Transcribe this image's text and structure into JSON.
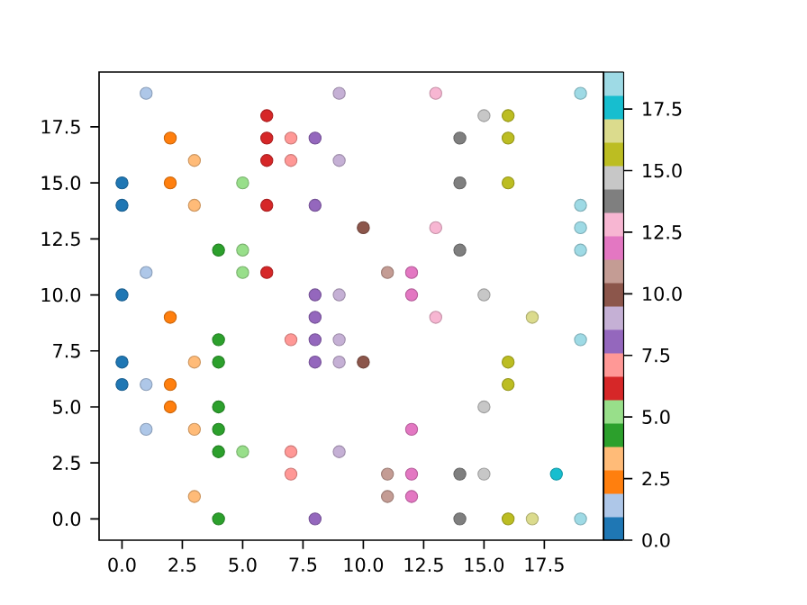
{
  "chart_data": {
    "type": "scatter",
    "x": [
      1,
      9,
      13,
      19,
      6,
      15,
      16,
      2,
      6,
      7,
      8,
      14,
      16,
      3,
      6,
      7,
      9,
      0,
      2,
      5,
      14,
      16,
      0,
      3,
      6,
      8,
      19,
      10,
      13,
      19,
      4,
      5,
      14,
      19,
      1,
      5,
      6,
      11,
      12,
      0,
      8,
      9,
      12,
      15,
      2,
      8,
      13,
      17,
      4,
      7,
      8,
      9,
      19,
      0,
      3,
      4,
      8,
      9,
      10,
      16,
      0,
      1,
      2,
      16,
      2,
      4,
      15,
      1,
      3,
      4,
      12,
      4,
      5,
      7,
      9,
      7,
      11,
      12,
      14,
      15,
      18,
      3,
      11,
      12,
      4,
      8,
      14,
      16,
      17,
      19
    ],
    "values": [
      19,
      19,
      19,
      19,
      18,
      18,
      18,
      17,
      17,
      17,
      17,
      17,
      17,
      16,
      16,
      16,
      16,
      15,
      15,
      15,
      15,
      15,
      14,
      14,
      14,
      14,
      14,
      13,
      13,
      13,
      12,
      12,
      12,
      12,
      11,
      11,
      11,
      11,
      11,
      10,
      10,
      10,
      10,
      10,
      9,
      9,
      9,
      9,
      8,
      8,
      8,
      8,
      8,
      7,
      7,
      7,
      7,
      7,
      7,
      7,
      6,
      6,
      6,
      6,
      5,
      5,
      5,
      4,
      4,
      4,
      4,
      3,
      3,
      3,
      3,
      2,
      2,
      2,
      2,
      2,
      2,
      1,
      1,
      1,
      0,
      0,
      0,
      0,
      0,
      0
    ],
    "cvalues": [
      1,
      9,
      13,
      19,
      6,
      15,
      16,
      2,
      6,
      7,
      8,
      14,
      16,
      3,
      6,
      7,
      9,
      0,
      2,
      5,
      14,
      16,
      0,
      3,
      6,
      8,
      19,
      10,
      13,
      19,
      4,
      5,
      14,
      19,
      1,
      5,
      6,
      11,
      12,
      0,
      8,
      9,
      12,
      15,
      2,
      8,
      13,
      17,
      4,
      7,
      8,
      9,
      19,
      0,
      3,
      4,
      8,
      9,
      10,
      16,
      0,
      1,
      2,
      16,
      2,
      4,
      15,
      1,
      3,
      4,
      12,
      4,
      5,
      7,
      9,
      7,
      11,
      12,
      14,
      15,
      18,
      3,
      11,
      12,
      4,
      8,
      14,
      16,
      17,
      19
    ],
    "marker": "circle",
    "xlim": [
      -0.95,
      19.95
    ],
    "ylim": [
      -0.95,
      19.95
    ],
    "xticks": [
      {
        "value": 0,
        "label": "0.0"
      },
      {
        "value": 2.5,
        "label": "2.5"
      },
      {
        "value": 5,
        "label": "5.0"
      },
      {
        "value": 7.5,
        "label": "7.5"
      },
      {
        "value": 10,
        "label": "10.0"
      },
      {
        "value": 12.5,
        "label": "12.5"
      },
      {
        "value": 15,
        "label": "15.0"
      },
      {
        "value": 17.5,
        "label": "17.5"
      }
    ],
    "yticks": [
      {
        "value": 0,
        "label": "0.0"
      },
      {
        "value": 2.5,
        "label": "2.5"
      },
      {
        "value": 5,
        "label": "5.0"
      },
      {
        "value": 7.5,
        "label": "7.5"
      },
      {
        "value": 10,
        "label": "10.0"
      },
      {
        "value": 12.5,
        "label": "12.5"
      },
      {
        "value": 15,
        "label": "15.0"
      },
      {
        "value": 17.5,
        "label": "17.5"
      }
    ],
    "clim": [
      0,
      19
    ],
    "cticks": [
      {
        "value": 0,
        "label": "0.0"
      },
      {
        "value": 2.5,
        "label": "2.5"
      },
      {
        "value": 5,
        "label": "5.0"
      },
      {
        "value": 7.5,
        "label": "7.5"
      },
      {
        "value": 10,
        "label": "10.0"
      },
      {
        "value": 12.5,
        "label": "12.5"
      },
      {
        "value": 15,
        "label": "15.0"
      },
      {
        "value": 17.5,
        "label": "17.5"
      }
    ]
  }
}
